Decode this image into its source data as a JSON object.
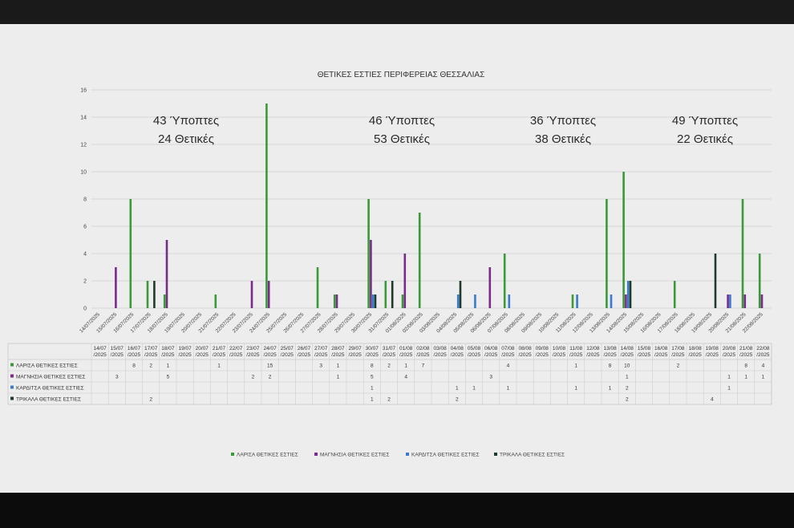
{
  "chart_data": {
    "type": "bar",
    "title": "ΘΕΤΙΚΕΣ ΕΣΤΙΕΣ ΠΕΡΙΦΕΡΕΙΑΣ ΘΕΣΣΑΛΙΑΣ",
    "ylim": [
      0,
      16
    ],
    "yticks": [
      "0",
      "2",
      "4",
      "6",
      "8",
      "10",
      "12",
      "14",
      "16"
    ],
    "grid": true,
    "legend_position": "bottom",
    "categories": [
      "14/07/2025",
      "15/07/2025",
      "16/07/2025",
      "17/07/2025",
      "18/07/2025",
      "19/07/2025",
      "20/07/2025",
      "21/07/2025",
      "22/07/2025",
      "23/07/2025",
      "24/07/2025",
      "25/07/2025",
      "26/07/2025",
      "27/07/2025",
      "28/07/2025",
      "29/07/2025",
      "30/07/2025",
      "31/07/2025",
      "01/08/2025",
      "02/08/2025",
      "03/08/2025",
      "04/08/2025",
      "05/08/2025",
      "06/08/2025",
      "07/08/2025",
      "08/08/2025",
      "09/08/2025",
      "10/08/2025",
      "11/08/2025",
      "12/08/2025",
      "13/08/2025",
      "14/08/2025",
      "15/08/2025",
      "16/08/2025",
      "17/08/2025",
      "18/08/2025",
      "19/08/2025",
      "20/08/2025",
      "21/08/2025",
      "22/08/2025"
    ],
    "table_headers": [
      "14/07/2025",
      "15/07/2025",
      "16/07/2025",
      "17/07/2025",
      "18/07/2025",
      "19/07/2025",
      "20/07/2025",
      "21/07/2025",
      "22/07/2025",
      "23/07/2025",
      "24/07/2025",
      "25/07/2025",
      "26/07/2025",
      "27/07/2025",
      "28/07/2025",
      "29/07/2025",
      "30/07/2025",
      "31/07/2025",
      "01/08/2025",
      "02/08/2025",
      "03/08/2025",
      "04/08/2025",
      "05/08/2025",
      "06/08/2025",
      "07/08/2025",
      "08/08/2025",
      "09/08/2025",
      "10/08/2025",
      "11/08/2025",
      "12/08/2025",
      "13/08/2025",
      "14/08/2025",
      "15/08/2025",
      "16/08/2025",
      "17/08/2025",
      "18/08/2025",
      "19/08/2025",
      "20/08/2025",
      "21/08/2025",
      "22/08/2025"
    ],
    "series": [
      {
        "name": "ΛΑΡΙΣΑ ΘΕΤΙΚΕΣ ΕΣΤΙΕΣ",
        "color": "#3a9a3a",
        "values": [
          null,
          null,
          8,
          2,
          1,
          null,
          null,
          1,
          null,
          null,
          15,
          null,
          null,
          3,
          1,
          null,
          8,
          2,
          1,
          7,
          null,
          null,
          null,
          null,
          4,
          null,
          null,
          null,
          1,
          null,
          8,
          10,
          null,
          null,
          2,
          null,
          null,
          null,
          8,
          4
        ]
      },
      {
        "name": "ΜΑΓΝΗΣΙΑ ΘΕΤΙΚΕΣ ΕΣΤΙΕΣ",
        "color": "#7a2a8a",
        "values": [
          null,
          3,
          null,
          null,
          5,
          null,
          null,
          null,
          null,
          2,
          2,
          null,
          null,
          null,
          1,
          null,
          5,
          null,
          4,
          null,
          null,
          null,
          null,
          3,
          null,
          null,
          null,
          null,
          null,
          null,
          null,
          1,
          null,
          null,
          null,
          null,
          null,
          1,
          1,
          1
        ]
      },
      {
        "name": "ΚΑΡΔΙΤΣΑ ΘΕΤΙΚΕΣ ΕΣΤΙΕΣ",
        "color": "#3a7acc",
        "values": [
          null,
          null,
          null,
          null,
          null,
          null,
          null,
          null,
          null,
          null,
          null,
          null,
          null,
          null,
          null,
          null,
          1,
          null,
          null,
          null,
          null,
          1,
          1,
          null,
          1,
          null,
          null,
          null,
          1,
          null,
          1,
          2,
          null,
          null,
          null,
          null,
          null,
          1,
          null,
          null
        ]
      },
      {
        "name": "ΤΡΙΚΑΛΑ ΘΕΤΙΚΕΣ ΕΣΤΙΕΣ",
        "color": "#1e3a2a",
        "values": [
          null,
          null,
          null,
          2,
          null,
          null,
          null,
          null,
          null,
          null,
          null,
          null,
          null,
          null,
          null,
          null,
          1,
          2,
          null,
          null,
          null,
          2,
          null,
          null,
          null,
          null,
          null,
          null,
          null,
          null,
          null,
          2,
          null,
          null,
          null,
          null,
          4,
          null,
          null,
          null
        ]
      }
    ],
    "annotations": [
      {
        "lines": [
          "43 Ύποπτες",
          "24 Θετικές"
        ]
      },
      {
        "lines": [
          "46 Ύποπτες",
          "53 Θετικές"
        ]
      },
      {
        "lines": [
          "36 Ύποπτες",
          "38 Θετικές"
        ]
      },
      {
        "lines": [
          "49 Ύποπτες",
          "22 Θετικές"
        ]
      }
    ]
  }
}
